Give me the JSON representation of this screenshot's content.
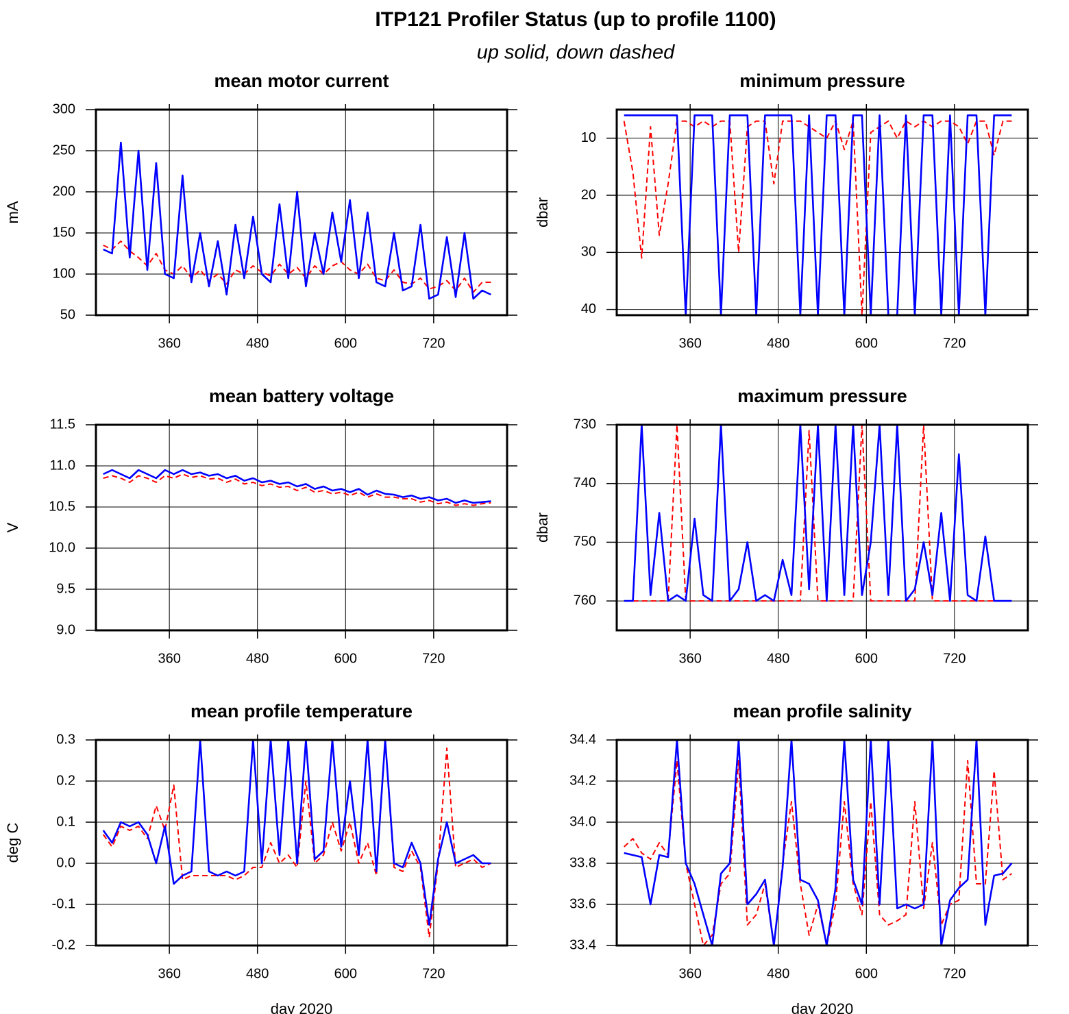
{
  "title": "ITP121 Profiler Status (up to profile 1100)",
  "subtitle": "up solid, down dashed",
  "chart_data": [
    {
      "type": "line",
      "title": "mean motor current",
      "ylabel": "mA",
      "x": [
        270,
        282,
        294,
        306,
        318,
        330,
        342,
        354,
        366,
        378,
        390,
        402,
        414,
        426,
        438,
        450,
        462,
        474,
        486,
        498,
        510,
        522,
        534,
        546,
        558,
        570,
        582,
        594,
        606,
        618,
        630,
        642,
        654,
        666,
        678,
        690,
        702,
        714,
        726,
        738,
        750,
        762,
        774,
        786,
        798
      ],
      "xlim": [
        260,
        820
      ],
      "xticks": [
        360,
        480,
        600,
        720
      ],
      "ylim": [
        50,
        300
      ],
      "yticks": [
        50,
        100,
        150,
        200,
        250,
        300
      ],
      "grid": true,
      "invert_y": false,
      "series": [
        {
          "color": "#ff0000",
          "line_style": "dashed",
          "values": [
            135,
            130,
            140,
            128,
            120,
            110,
            125,
            105,
            100,
            110,
            95,
            105,
            92,
            100,
            88,
            105,
            100,
            110,
            102,
            98,
            112,
            100,
            108,
            95,
            110,
            100,
            110,
            115,
            105,
            100,
            112,
            95,
            92,
            105,
            90,
            88,
            95,
            82,
            85,
            92,
            80,
            95,
            78,
            90,
            90
          ]
        },
        {
          "color": "#0000ff",
          "line_style": "solid",
          "values": [
            130,
            125,
            260,
            120,
            250,
            105,
            235,
            100,
            95,
            220,
            90,
            150,
            85,
            140,
            75,
            160,
            95,
            170,
            100,
            90,
            185,
            95,
            200,
            85,
            150,
            100,
            175,
            115,
            190,
            95,
            175,
            90,
            85,
            150,
            80,
            85,
            160,
            70,
            75,
            145,
            72,
            150,
            70,
            80,
            75
          ]
        }
      ]
    },
    {
      "type": "line",
      "title": "minimum pressure",
      "ylabel": "dbar",
      "x": [
        270,
        282,
        294,
        306,
        318,
        330,
        342,
        354,
        366,
        378,
        390,
        402,
        414,
        426,
        438,
        450,
        462,
        474,
        486,
        498,
        510,
        522,
        534,
        546,
        558,
        570,
        582,
        594,
        606,
        618,
        630,
        642,
        654,
        666,
        678,
        690,
        702,
        714,
        726,
        738,
        750,
        762,
        774,
        786,
        798
      ],
      "xlim": [
        260,
        820
      ],
      "xticks": [
        360,
        480,
        600,
        720
      ],
      "ylim": [
        5,
        41
      ],
      "yticks": [
        10,
        20,
        30,
        40
      ],
      "grid": true,
      "invert_y": true,
      "series": [
        {
          "color": "#ff0000",
          "line_style": "dashed",
          "values": [
            7,
            16,
            31,
            8,
            27,
            18,
            7,
            7,
            8,
            7,
            8,
            7,
            7,
            30,
            8,
            7,
            7,
            18,
            7,
            7,
            7,
            8,
            9,
            10,
            7,
            12,
            7,
            41,
            9,
            8,
            7,
            10,
            7,
            8,
            7,
            8,
            7,
            7,
            8,
            11,
            7,
            7,
            13,
            7,
            7
          ]
        },
        {
          "color": "#0000ff",
          "line_style": "solid",
          "values": [
            6,
            6,
            6,
            6,
            6,
            6,
            6,
            41,
            6,
            6,
            6,
            41,
            6,
            6,
            6,
            41,
            6,
            6,
            6,
            6,
            41,
            6,
            41,
            6,
            6,
            41,
            6,
            6,
            41,
            6,
            41,
            41,
            6,
            41,
            6,
            6,
            41,
            6,
            41,
            6,
            6,
            41,
            6,
            6,
            6
          ]
        }
      ]
    },
    {
      "type": "line",
      "title": "mean battery voltage",
      "ylabel": "V",
      "x": [
        270,
        282,
        294,
        306,
        318,
        330,
        342,
        354,
        366,
        378,
        390,
        402,
        414,
        426,
        438,
        450,
        462,
        474,
        486,
        498,
        510,
        522,
        534,
        546,
        558,
        570,
        582,
        594,
        606,
        618,
        630,
        642,
        654,
        666,
        678,
        690,
        702,
        714,
        726,
        738,
        750,
        762,
        774,
        786,
        798
      ],
      "xlim": [
        260,
        820
      ],
      "xticks": [
        360,
        480,
        600,
        720
      ],
      "ylim": [
        9,
        11.5
      ],
      "yticks": [
        {
          "value": 9,
          "label": "9.0"
        },
        9.5,
        {
          "value": 10,
          "label": "10.0"
        },
        10.5,
        {
          "value": 11,
          "label": "11.0"
        },
        11.5
      ],
      "grid": true,
      "invert_y": false,
      "series": [
        {
          "color": "#ff0000",
          "line_style": "dashed",
          "values": [
            10.85,
            10.88,
            10.85,
            10.8,
            10.88,
            10.85,
            10.8,
            10.88,
            10.85,
            10.9,
            10.86,
            10.88,
            10.84,
            10.85,
            10.8,
            10.84,
            10.78,
            10.8,
            10.76,
            10.78,
            10.74,
            10.75,
            10.7,
            10.74,
            10.68,
            10.7,
            10.66,
            10.68,
            10.64,
            10.68,
            10.62,
            10.66,
            10.62,
            10.62,
            10.6,
            10.6,
            10.56,
            10.58,
            10.54,
            10.56,
            10.52,
            10.54,
            10.52,
            10.54,
            10.55
          ]
        },
        {
          "color": "#0000ff",
          "line_style": "solid",
          "values": [
            10.9,
            10.95,
            10.9,
            10.85,
            10.95,
            10.9,
            10.85,
            10.95,
            10.9,
            10.95,
            10.9,
            10.92,
            10.88,
            10.9,
            10.85,
            10.88,
            10.82,
            10.85,
            10.8,
            10.82,
            10.78,
            10.8,
            10.75,
            10.78,
            10.72,
            10.75,
            10.7,
            10.72,
            10.68,
            10.72,
            10.65,
            10.7,
            10.66,
            10.65,
            10.62,
            10.64,
            10.6,
            10.62,
            10.58,
            10.6,
            10.55,
            10.58,
            10.55,
            10.56,
            10.57
          ]
        }
      ]
    },
    {
      "type": "line",
      "title": "maximum pressure",
      "ylabel": "dbar",
      "x": [
        270,
        282,
        294,
        306,
        318,
        330,
        342,
        354,
        366,
        378,
        390,
        402,
        414,
        426,
        438,
        450,
        462,
        474,
        486,
        498,
        510,
        522,
        534,
        546,
        558,
        570,
        582,
        594,
        606,
        618,
        630,
        642,
        654,
        666,
        678,
        690,
        702,
        714,
        726,
        738,
        750,
        762,
        774,
        786,
        798
      ],
      "xlim": [
        260,
        820
      ],
      "xticks": [
        360,
        480,
        600,
        720
      ],
      "ylim": [
        730,
        765
      ],
      "yticks": [
        730,
        740,
        750,
        760
      ],
      "grid": true,
      "invert_y": true,
      "series": [
        {
          "color": "#ff0000",
          "line_style": "dashed",
          "values": [
            760,
            760,
            760,
            760,
            760,
            760,
            730,
            760,
            760,
            760,
            760,
            760,
            760,
            760,
            760,
            760,
            760,
            760,
            760,
            760,
            760,
            731,
            760,
            760,
            760,
            760,
            760,
            730,
            760,
            760,
            760,
            760,
            760,
            760,
            730,
            760,
            760,
            760,
            760,
            760,
            760,
            760,
            760,
            760,
            760
          ]
        },
        {
          "color": "#0000ff",
          "line_style": "solid",
          "values": [
            760,
            760,
            730,
            759,
            745,
            760,
            759,
            760,
            746,
            759,
            760,
            730,
            760,
            758,
            750,
            760,
            759,
            760,
            753,
            759,
            730,
            758,
            730,
            760,
            730,
            759,
            730,
            759,
            750,
            730,
            759,
            730,
            760,
            758,
            750,
            759,
            745,
            760,
            735,
            759,
            760,
            749,
            760,
            760,
            760
          ]
        }
      ]
    },
    {
      "type": "line",
      "title": "mean profile temperature",
      "ylabel": "deg C",
      "xlabel": "day 2020",
      "x": [
        270,
        282,
        294,
        306,
        318,
        330,
        342,
        354,
        366,
        378,
        390,
        402,
        414,
        426,
        438,
        450,
        462,
        474,
        486,
        498,
        510,
        522,
        534,
        546,
        558,
        570,
        582,
        594,
        606,
        618,
        630,
        642,
        654,
        666,
        678,
        690,
        702,
        714,
        726,
        738,
        750,
        762,
        774,
        786,
        798
      ],
      "xlim": [
        260,
        820
      ],
      "xticks": [
        360,
        480,
        600,
        720
      ],
      "ylim": [
        -0.2,
        0.3
      ],
      "yticks": [
        -0.2,
        -0.1,
        {
          "value": 0,
          "label": "0.0"
        },
        0.1,
        0.2,
        0.3
      ],
      "grid": true,
      "invert_y": false,
      "series": [
        {
          "color": "#ff0000",
          "line_style": "dashed",
          "values": [
            0.07,
            0.04,
            0.09,
            0.08,
            0.09,
            0.06,
            0.14,
            0.08,
            0.19,
            -0.04,
            -0.03,
            -0.03,
            -0.03,
            -0.03,
            -0.03,
            -0.04,
            -0.03,
            -0.01,
            -0.01,
            0.05,
            0.0,
            0.02,
            -0.01,
            0.2,
            0.0,
            0.02,
            0.1,
            0.03,
            0.1,
            0.0,
            0.05,
            -0.03,
            0.3,
            -0.01,
            -0.02,
            0.03,
            -0.01,
            -0.18,
            0.0,
            0.28,
            -0.01,
            0.0,
            0.01,
            -0.01,
            0.0
          ]
        },
        {
          "color": "#0000ff",
          "line_style": "solid",
          "values": [
            0.08,
            0.05,
            0.1,
            0.09,
            0.1,
            0.07,
            0.0,
            0.09,
            -0.05,
            -0.03,
            -0.02,
            0.3,
            -0.02,
            -0.03,
            -0.02,
            -0.03,
            -0.02,
            0.3,
            0.0,
            0.3,
            0.02,
            0.3,
            0.0,
            0.3,
            0.01,
            0.03,
            0.3,
            0.04,
            0.2,
            0.02,
            0.3,
            -0.02,
            0.3,
            0.0,
            -0.01,
            0.05,
            0.0,
            -0.15,
            0.01,
            0.1,
            0.0,
            0.01,
            0.02,
            0.0,
            0.0
          ]
        }
      ]
    },
    {
      "type": "line",
      "title": "mean profile salinity",
      "xlabel": "day 2020",
      "x": [
        270,
        282,
        294,
        306,
        318,
        330,
        342,
        354,
        366,
        378,
        390,
        402,
        414,
        426,
        438,
        450,
        462,
        474,
        486,
        498,
        510,
        522,
        534,
        546,
        558,
        570,
        582,
        594,
        606,
        618,
        630,
        642,
        654,
        666,
        678,
        690,
        702,
        714,
        726,
        738,
        750,
        762,
        774,
        786,
        798
      ],
      "xlim": [
        260,
        820
      ],
      "xticks": [
        360,
        480,
        600,
        720
      ],
      "ylim": [
        33.4,
        34.4
      ],
      "yticks": [
        33.4,
        33.6,
        33.8,
        {
          "value": 34,
          "label": "34.0"
        },
        34.2,
        34.4
      ],
      "grid": true,
      "invert_y": false,
      "series": [
        {
          "color": "#ff0000",
          "line_style": "dashed",
          "values": [
            33.88,
            33.92,
            33.85,
            33.82,
            33.9,
            33.84,
            34.3,
            33.8,
            33.6,
            33.4,
            33.45,
            33.7,
            33.75,
            34.3,
            33.5,
            33.55,
            33.7,
            33.4,
            33.8,
            34.1,
            33.7,
            33.45,
            33.6,
            33.4,
            33.6,
            34.1,
            33.7,
            33.55,
            34.1,
            33.55,
            33.5,
            33.52,
            33.55,
            34.1,
            33.58,
            33.9,
            33.5,
            33.6,
            33.62,
            34.3,
            33.7,
            33.7,
            34.25,
            33.72,
            33.75
          ]
        },
        {
          "color": "#0000ff",
          "line_style": "solid",
          "values": [
            33.85,
            33.84,
            33.83,
            33.6,
            33.84,
            33.83,
            34.4,
            33.8,
            33.7,
            33.55,
            33.4,
            33.75,
            33.8,
            34.4,
            33.6,
            33.65,
            33.72,
            33.4,
            33.78,
            34.4,
            33.72,
            33.7,
            33.62,
            33.4,
            33.68,
            34.4,
            33.72,
            33.6,
            34.4,
            33.6,
            34.4,
            33.58,
            33.6,
            33.58,
            33.6,
            34.4,
            33.4,
            33.62,
            33.68,
            33.72,
            34.4,
            33.5,
            33.74,
            33.75,
            33.8
          ]
        }
      ]
    }
  ]
}
